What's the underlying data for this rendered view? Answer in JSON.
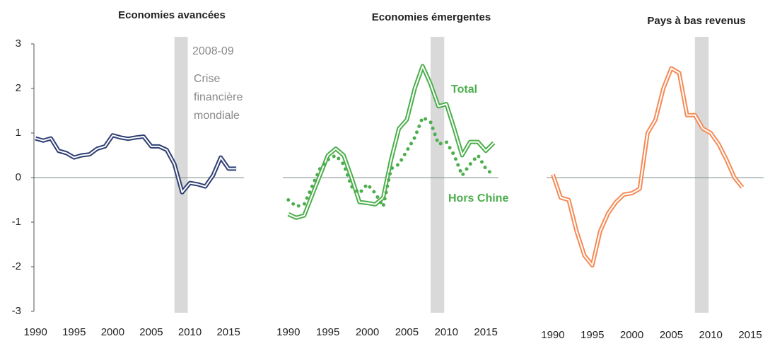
{
  "chart_data": [
    {
      "type": "line",
      "title": "Economies avancées",
      "x": [
        1990,
        1991,
        1992,
        1993,
        1994,
        1995,
        1996,
        1997,
        1998,
        1999,
        2000,
        2001,
        2002,
        2003,
        2004,
        2005,
        2006,
        2007,
        2008,
        2009,
        2010,
        2011,
        2012,
        2013,
        2014,
        2015,
        2016
      ],
      "series": [
        {
          "color": "#2f3f73",
          "values": [
            0.88,
            0.83,
            0.88,
            0.6,
            0.55,
            0.45,
            0.5,
            0.52,
            0.65,
            0.7,
            0.95,
            0.9,
            0.87,
            0.9,
            0.92,
            0.7,
            0.7,
            0.62,
            0.3,
            -0.33,
            -0.12,
            -0.15,
            -0.2,
            0.05,
            0.45,
            0.2,
            0.2
          ]
        }
      ],
      "xlim": [
        1989.8,
        2017
      ],
      "ylim": [
        -3,
        3
      ],
      "xticks": [
        1990,
        1995,
        2000,
        2005,
        2010,
        2015
      ],
      "yticks": [
        -3,
        -2,
        -1,
        0,
        1,
        2,
        3
      ],
      "shade": [
        2008,
        2009
      ],
      "shade_label": "2008-09",
      "annotation": [
        "Crise",
        "financière",
        "mondiale"
      ]
    },
    {
      "type": "line",
      "title": "Economies émergentes",
      "x": [
        1990,
        1991,
        1992,
        1993,
        1994,
        1995,
        1996,
        1997,
        1998,
        1999,
        2000,
        2001,
        2002,
        2003,
        2004,
        2005,
        2006,
        2007,
        2008,
        2009,
        2010,
        2011,
        2012,
        2013,
        2014,
        2015,
        2016
      ],
      "series": [
        {
          "name": "Total",
          "color": "#4cae4c",
          "values": [
            -0.82,
            -0.9,
            -0.85,
            -0.4,
            0.05,
            0.5,
            0.65,
            0.5,
            0.0,
            -0.55,
            -0.57,
            -0.6,
            -0.45,
            0.4,
            1.1,
            1.3,
            2.0,
            2.5,
            2.1,
            1.6,
            1.65,
            1.1,
            0.5,
            0.8,
            0.8,
            0.6,
            0.78
          ]
        },
        {
          "name": "Hors Chine",
          "color": "#4cae4c",
          "style": "dotted",
          "values": [
            -0.5,
            -0.65,
            -0.6,
            -0.2,
            0.2,
            0.4,
            0.5,
            0.3,
            -0.2,
            -0.35,
            -0.15,
            -0.35,
            -0.65,
            0.2,
            0.3,
            0.6,
            0.9,
            1.35,
            1.25,
            0.75,
            0.8,
            0.5,
            0.05,
            0.3,
            0.5,
            0.2,
            0.05
          ]
        }
      ],
      "xlim": [
        1989.3,
        2016.6
      ],
      "ylim": [
        -3,
        3
      ],
      "xticks": [
        1990,
        1995,
        2000,
        2005,
        2010,
        2015
      ],
      "shade": [
        2008,
        2009
      ]
    },
    {
      "type": "line",
      "title": "Pays à bas revenus",
      "x": [
        1990,
        1991,
        1992,
        1993,
        1994,
        1995,
        1996,
        1997,
        1998,
        1999,
        2000,
        2001,
        2002,
        2003,
        2004,
        2005,
        2006,
        2007,
        2008,
        2009,
        2010,
        2011,
        2012,
        2013,
        2014
      ],
      "series": [
        {
          "color": "#f58a55",
          "values": [
            0.07,
            -0.45,
            -0.5,
            -1.2,
            -1.75,
            -1.97,
            -1.2,
            -0.8,
            -0.55,
            -0.38,
            -0.35,
            -0.25,
            1.0,
            1.3,
            2.0,
            2.45,
            2.35,
            1.4,
            1.4,
            1.1,
            1.0,
            0.75,
            0.4,
            0.0,
            -0.22
          ]
        }
      ],
      "xlim": [
        1989.2,
        2016.7
      ],
      "ylim": [
        -3,
        3
      ],
      "xticks": [
        1990,
        1995,
        2000,
        2005,
        2010,
        2015
      ],
      "shade": [
        2008,
        2009
      ]
    }
  ]
}
